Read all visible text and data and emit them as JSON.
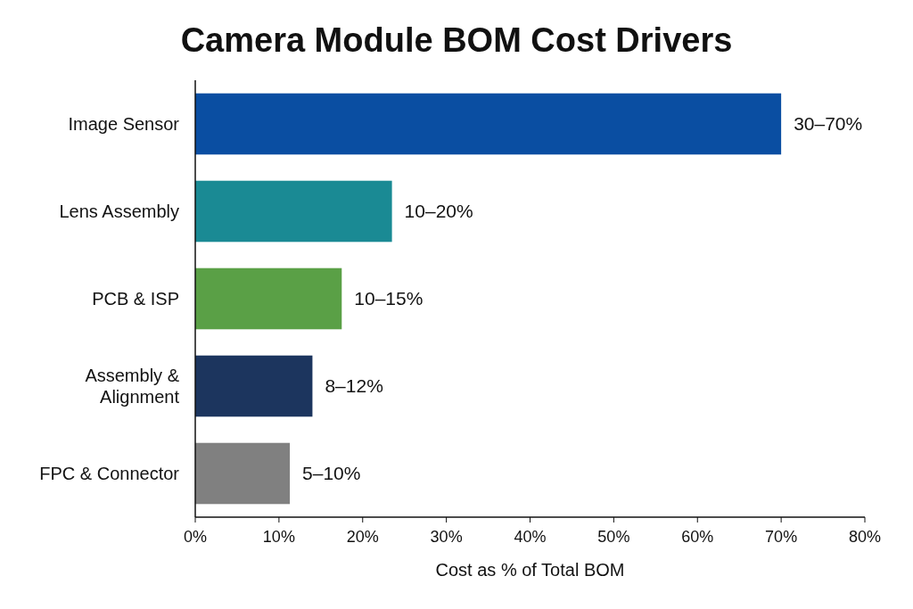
{
  "chart_data": {
    "type": "bar",
    "orientation": "horizontal",
    "title": "Camera Module BOM Cost Drivers",
    "xlabel": "Cost as % of Total BOM",
    "categories": [
      "Image Sensor",
      "Lens Assembly",
      "PCB & ISP",
      "Assembly & Alignment",
      "FPC & Connector"
    ],
    "values": [
      70,
      23.5,
      17.5,
      14,
      11.3
    ],
    "colors": [
      "#0a4ea2",
      "#1a8a94",
      "#5aa046",
      "#1c355e",
      "#808080"
    ],
    "annotations": [
      {
        "text": "30–70%",
        "x": 70,
        "y": "Image Sensor"
      },
      {
        "text": "10–20%",
        "x": 23.5,
        "y": "Lens Assembly"
      },
      {
        "text": "10–15%",
        "x": 17.5,
        "y": "PCB & ISP"
      },
      {
        "text": "8–12%",
        "x": 14,
        "y": "Assembly & Alignment"
      },
      {
        "text": "5–10%",
        "x": 11.3,
        "y": "FPC & Connector"
      }
    ],
    "xlim": [
      0,
      80
    ],
    "xticks": [
      {
        "value": 0,
        "label": "0%"
      },
      {
        "value": 10,
        "label": "10%"
      },
      {
        "value": 20,
        "label": "20%"
      },
      {
        "value": 30,
        "label": "30%"
      },
      {
        "value": 40,
        "label": "40%"
      },
      {
        "value": 50,
        "label": "50%"
      },
      {
        "value": 60,
        "label": "60%"
      },
      {
        "value": 70,
        "label": "70%"
      },
      {
        "value": 80,
        "label": "80%"
      }
    ],
    "grid": false
  }
}
